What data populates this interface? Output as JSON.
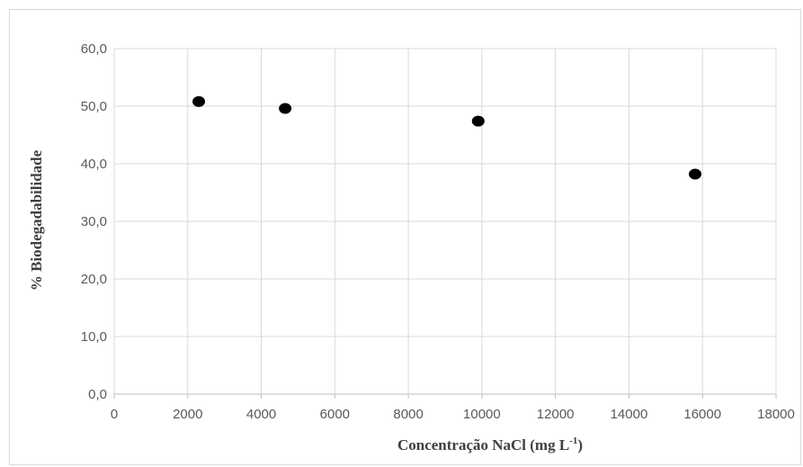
{
  "chart_data": {
    "type": "scatter",
    "title": "",
    "xlabel": "Concentração NaCl (mg L",
    "xlabel_sup": "-1",
    "xlabel_tail": ")",
    "ylabel": "% Biodegadabilidade",
    "xlim": [
      0,
      18000
    ],
    "ylim": [
      0,
      60
    ],
    "x_ticks": [
      "0",
      "2000",
      "4000",
      "6000",
      "8000",
      "10000",
      "12000",
      "14000",
      "16000",
      "18000"
    ],
    "y_ticks": [
      "0,0",
      "10,0",
      "20,0",
      "30,0",
      "40,0",
      "50,0",
      "60,0"
    ],
    "grid": true,
    "marker_color": "#000000",
    "points": [
      {
        "x": 2300,
        "y": 50.8
      },
      {
        "x": 4650,
        "y": 49.6
      },
      {
        "x": 9900,
        "y": 47.4
      },
      {
        "x": 15800,
        "y": 38.2
      }
    ]
  }
}
